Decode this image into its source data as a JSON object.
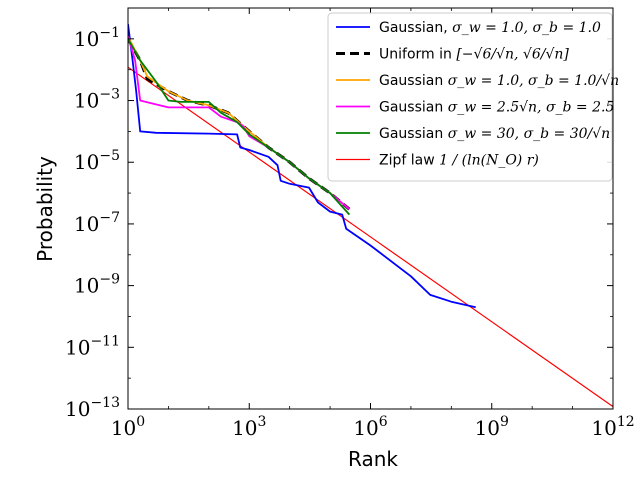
{
  "chart_data": {
    "type": "line",
    "xlabel": "Rank",
    "ylabel": "Probability",
    "xscale": "log",
    "yscale": "log",
    "xlim": [
      1,
      1000000000000.0
    ],
    "ylim": [
      1e-13,
      1
    ],
    "grid": false,
    "legend_position": "top-right",
    "x_ticks": [
      {
        "value": 1,
        "base": "10",
        "exp": "0"
      },
      {
        "value": 1000,
        "base": "10",
        "exp": "3"
      },
      {
        "value": 1000000,
        "base": "10",
        "exp": "6"
      },
      {
        "value": 1000000000,
        "base": "10",
        "exp": "9"
      },
      {
        "value": 1000000000000,
        "base": "10",
        "exp": "12"
      }
    ],
    "y_ticks": [
      {
        "value": 0.1,
        "base": "10",
        "exp": "−1"
      },
      {
        "value": 0.001,
        "base": "10",
        "exp": "−3"
      },
      {
        "value": 1e-05,
        "base": "10",
        "exp": "−5"
      },
      {
        "value": 1e-07,
        "base": "10",
        "exp": "−7"
      },
      {
        "value": 1e-09,
        "base": "10",
        "exp": "−9"
      },
      {
        "value": 1e-11,
        "base": "10",
        "exp": "−11"
      },
      {
        "value": 1e-13,
        "base": "10",
        "exp": "−13"
      }
    ],
    "series": [
      {
        "name": "Gaussian, σw = 1.0, σb = 1.0",
        "color": "#0000ff",
        "style": "solid",
        "points": [
          [
            1,
            0.3
          ],
          [
            1.3,
            0.02
          ],
          [
            1.6,
            0.002
          ],
          [
            2,
            0.0001
          ],
          [
            5,
            9e-05
          ],
          [
            100,
            8.5e-05
          ],
          [
            500,
            8e-05
          ],
          [
            600,
            3e-05
          ],
          [
            1000,
            2.5e-05
          ],
          [
            3000,
            1.5e-05
          ],
          [
            5000,
            8e-06
          ],
          [
            6000,
            2.5e-06
          ],
          [
            10000,
            2e-06
          ],
          [
            30000,
            1.5e-06
          ],
          [
            50000,
            5e-07
          ],
          [
            100000,
            2.5e-07
          ],
          [
            200000,
            2e-07
          ],
          [
            250000,
            7e-08
          ],
          [
            1000000,
            2e-08
          ],
          [
            10000000,
            2e-09
          ],
          [
            30000000,
            5e-10
          ],
          [
            100000000,
            3e-10
          ],
          [
            400000000,
            2e-10
          ]
        ]
      },
      {
        "name": "Uniform in [−√6/√n, √6/√n]",
        "color": "#000000",
        "style": "dashed",
        "points": [
          [
            1,
            0.1
          ],
          [
            2,
            0.02
          ],
          [
            3,
            0.005
          ],
          [
            10,
            0.002
          ],
          [
            30,
            0.001
          ],
          [
            100,
            0.0007
          ],
          [
            300,
            0.0004
          ],
          [
            1000,
            0.0001
          ],
          [
            3000,
            3e-05
          ],
          [
            10000,
            1e-05
          ],
          [
            30000,
            3e-06
          ],
          [
            100000,
            1e-06
          ],
          [
            300000,
            3e-07
          ]
        ]
      },
      {
        "name": "Gaussian, σw = 1.0, σb = 1.0/√n",
        "color": "#ffa500",
        "style": "solid",
        "points": [
          [
            1,
            0.12
          ],
          [
            2,
            0.02
          ],
          [
            3,
            0.006
          ],
          [
            10,
            0.002
          ],
          [
            30,
            0.001
          ],
          [
            100,
            0.0007
          ],
          [
            300,
            0.0004
          ],
          [
            1000,
            0.0001
          ],
          [
            3000,
            3e-05
          ],
          [
            10000,
            1e-05
          ],
          [
            30000,
            3e-06
          ],
          [
            100000,
            1e-06
          ],
          [
            300000,
            3e-07
          ]
        ]
      },
      {
        "name": "Gaussian, σw = 2.5√n, σb = 2.5",
        "color": "#ff00ff",
        "style": "solid",
        "points": [
          [
            1,
            0.12
          ],
          [
            1.5,
            0.02
          ],
          [
            2,
            0.001
          ],
          [
            4,
            0.0008
          ],
          [
            10,
            0.0006
          ],
          [
            100,
            0.0006
          ],
          [
            200,
            0.0003
          ],
          [
            500,
            0.0002
          ],
          [
            700,
            0.00015
          ],
          [
            1000,
            7e-05
          ],
          [
            3000,
            3e-05
          ],
          [
            10000,
            1e-05
          ],
          [
            30000,
            3e-06
          ],
          [
            100000,
            1e-06
          ],
          [
            300000,
            3e-07
          ]
        ]
      },
      {
        "name": "Gaussian, σw = 30, σb = 30/√n",
        "color": "#008000",
        "style": "solid",
        "points": [
          [
            1,
            0.1
          ],
          [
            2,
            0.02
          ],
          [
            5,
            0.004
          ],
          [
            10,
            0.001
          ],
          [
            20,
            0.0009
          ],
          [
            100,
            0.0009
          ],
          [
            200,
            0.0004
          ],
          [
            500,
            0.0002
          ],
          [
            1000,
            8e-05
          ],
          [
            3000,
            3e-05
          ],
          [
            10000,
            1e-05
          ],
          [
            30000,
            3e-06
          ],
          [
            100000,
            1e-06
          ],
          [
            300000,
            2e-07
          ]
        ]
      },
      {
        "name": "Zipf law 1/(ln(N_O) r)",
        "color": "#ff0000",
        "style": "solid",
        "points": [
          [
            1,
            0.012
          ],
          [
            1000000000000,
            1.2e-13
          ]
        ]
      }
    ]
  },
  "legend_labels": [
    {
      "prefix": "Gaussian, ",
      "math": "σ_w = 1.0, σ_b = 1.0"
    },
    {
      "prefix": "Uniform in ",
      "math": "[−√6/√n, √6/√n]"
    },
    {
      "prefix": "Gaussian ",
      "math": "σ_w = 1.0, σ_b = 1.0/√n"
    },
    {
      "prefix": "Gaussian ",
      "math": "σ_w = 2.5√n, σ_b = 2.5"
    },
    {
      "prefix": "Gaussian ",
      "math": "σ_w = 30, σ_b = 30/√n"
    },
    {
      "prefix": "Zipf law ",
      "math": "1 / (ln(N_O) r)"
    }
  ]
}
